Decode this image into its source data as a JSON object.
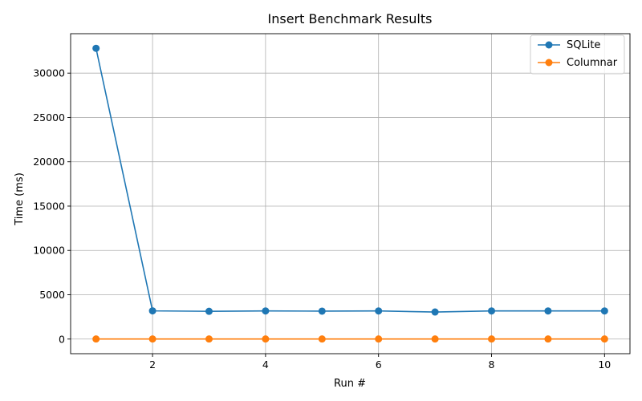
{
  "chart_data": {
    "type": "line",
    "title": "Insert Benchmark Results",
    "xlabel": "Run #",
    "ylabel": "Time (ms)",
    "x": [
      1,
      2,
      3,
      4,
      5,
      6,
      7,
      8,
      9,
      10
    ],
    "xlim": [
      0.55,
      10.45
    ],
    "ylim": [
      -1650,
      34450
    ],
    "xticks": [
      2,
      4,
      6,
      8,
      10
    ],
    "yticks": [
      0,
      5000,
      10000,
      15000,
      20000,
      25000,
      30000
    ],
    "grid": true,
    "legend_position": "top-right",
    "series": [
      {
        "name": "SQLite",
        "color": "#1f77b4",
        "values": [
          32800,
          3180,
          3130,
          3170,
          3150,
          3170,
          3050,
          3170,
          3170,
          3170
        ]
      },
      {
        "name": "Columnar",
        "color": "#ff7f0e",
        "values": [
          10,
          10,
          10,
          10,
          10,
          10,
          10,
          10,
          10,
          10
        ]
      }
    ]
  }
}
